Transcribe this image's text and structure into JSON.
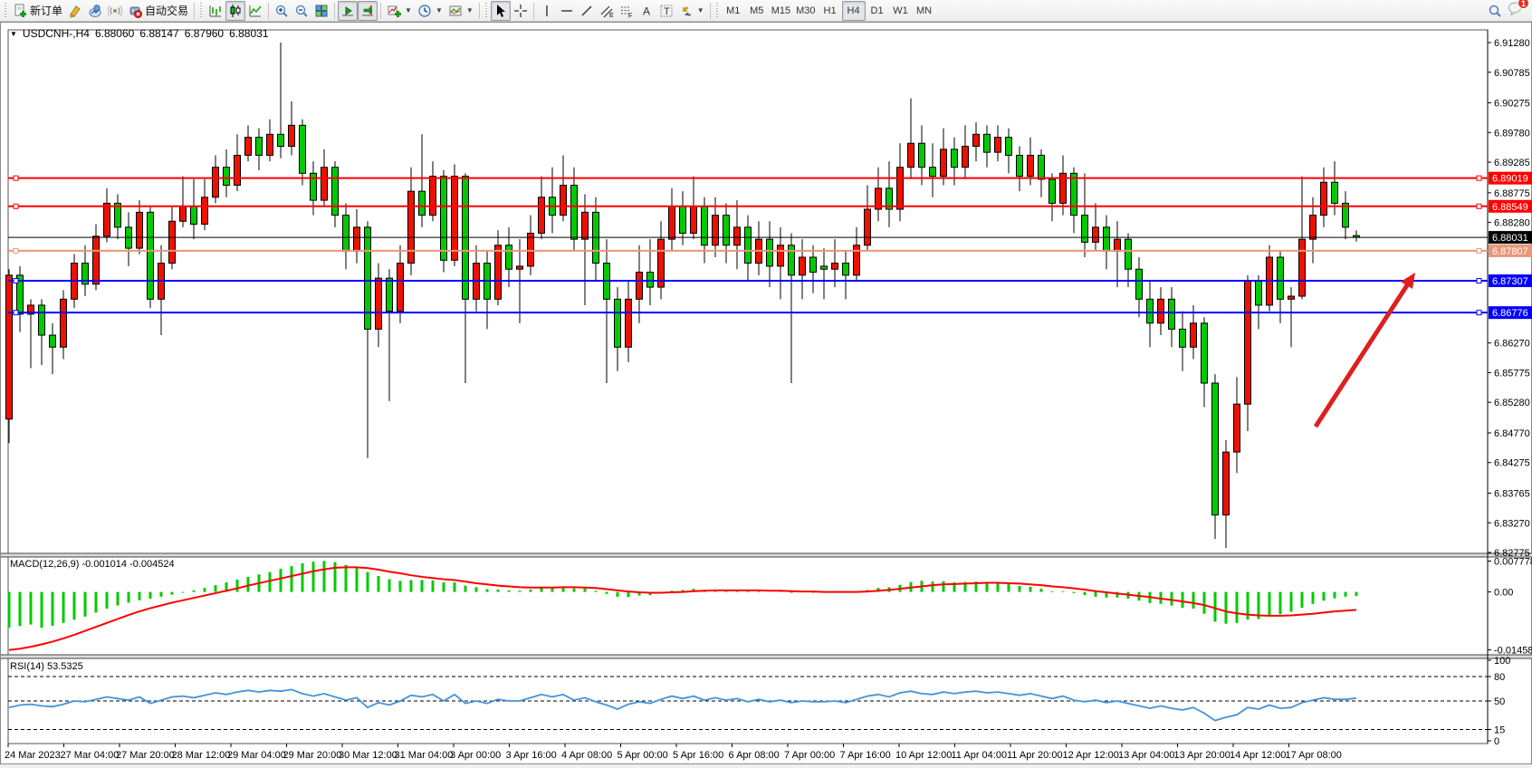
{
  "toolbar": {
    "new_order_label": "新订单",
    "auto_trading_label": "自动交易",
    "timeframes": {
      "items": [
        "M1",
        "M5",
        "M15",
        "M30",
        "H1",
        "H4",
        "D1",
        "W1",
        "MN"
      ],
      "active": "H4"
    },
    "notification_badge": "1"
  },
  "chart_header": {
    "symbol_title": "USDCNH-,H4",
    "open": "6.88060",
    "high": "6.88147",
    "low": "6.87960",
    "close": "6.88031"
  },
  "price_axis": {
    "ticks": [
      "6.91280",
      "6.90785",
      "6.90275",
      "6.89780",
      "6.89285",
      "6.88775",
      "6.88280",
      "6.86270",
      "6.85775",
      "6.85280",
      "6.84770",
      "6.84275",
      "6.83765",
      "6.83270",
      "6.82775"
    ]
  },
  "time_axis": {
    "labels": [
      "24 Mar 2023",
      "27 Mar 04:00",
      "27 Mar 20:00",
      "28 Mar 12:00",
      "29 Mar 04:00",
      "29 Mar 20:00",
      "30 Mar 12:00",
      "31 Mar 04:00",
      "3 Apr 00:00",
      "3 Apr 16:00",
      "4 Apr 08:00",
      "5 Apr 00:00",
      "5 Apr 16:00",
      "6 Apr 08:00",
      "7 Apr 00:00",
      "7 Apr 16:00",
      "10 Apr 12:00",
      "11 Apr 04:00",
      "11 Apr 20:00",
      "12 Apr 12:00",
      "13 Apr 04:00",
      "13 Apr 20:00",
      "14 Apr 12:00",
      "17 Apr 08:00"
    ]
  },
  "levels": [
    {
      "name": "resistance-line-1",
      "price": "6.89019",
      "color": "#FF0000",
      "width": 2,
      "handles": true
    },
    {
      "name": "resistance-line-2",
      "price": "6.88549",
      "color": "#FF0000",
      "width": 2,
      "handles": true
    },
    {
      "name": "current-price-line",
      "price": "6.88031",
      "color": "#000000",
      "width": 1,
      "handles": false
    },
    {
      "name": "support-line-salmon",
      "price": "6.87807",
      "color": "#E9967A",
      "width": 2,
      "handles": true
    },
    {
      "name": "support-line-blue-1",
      "price": "6.87307",
      "color": "#0000FF",
      "width": 2,
      "handles": true
    },
    {
      "name": "support-line-blue-2",
      "price": "6.86776",
      "color": "#0000FF",
      "width": 2,
      "handles": true
    }
  ],
  "annotation": {
    "type": "arrow-up-right",
    "color": "#DD1F1F"
  },
  "indicators": {
    "macd": {
      "name_label": "MACD(12,26,9)",
      "value_main": "-0.001014",
      "value_signal": "-0.004524",
      "axis_ticks": [
        "0.007778",
        "0.00",
        "-0.014587"
      ]
    },
    "rsi": {
      "name_label": "RSI(14)",
      "value": "53.5325",
      "axis_ticks": [
        "100",
        "80",
        "50",
        "15",
        "0"
      ],
      "guide_levels": [
        80,
        50,
        15
      ]
    }
  },
  "colors": {
    "bull": "#EE1100",
    "bear": "#00CB00",
    "wick": "#000000",
    "macd_histogram": "#00CB00",
    "macd_signal": "#FF0000",
    "rsi_line": "#4393DC"
  },
  "chart_data": {
    "type": "candlestick",
    "symbol": "USDCNH",
    "timeframe": "H4",
    "note": "red body = bullish, green body = bearish (CN convention)",
    "candles": [
      [
        6.85,
        6.875,
        6.846,
        6.874
      ],
      [
        6.874,
        6.8755,
        6.8645,
        6.8675
      ],
      [
        6.8675,
        6.87,
        6.8585,
        6.869
      ],
      [
        6.869,
        6.87,
        6.859,
        6.864
      ],
      [
        6.864,
        6.866,
        6.8575,
        6.862
      ],
      [
        6.862,
        6.8715,
        6.86,
        6.87
      ],
      [
        6.87,
        6.8775,
        6.8685,
        6.876
      ],
      [
        6.876,
        6.879,
        6.8705,
        6.8725
      ],
      [
        6.8725,
        6.8825,
        6.8715,
        6.8805
      ],
      [
        6.8805,
        6.8885,
        6.8795,
        6.886
      ],
      [
        6.886,
        6.8875,
        6.88,
        6.882
      ],
      [
        6.882,
        6.8845,
        6.8755,
        6.8785
      ],
      [
        6.8785,
        6.8865,
        6.8775,
        6.8845
      ],
      [
        6.8845,
        6.8855,
        6.8685,
        6.87
      ],
      [
        6.87,
        6.879,
        6.864,
        6.876
      ],
      [
        6.876,
        6.8855,
        6.875,
        6.883
      ],
      [
        6.883,
        6.8905,
        6.882,
        6.8855
      ],
      [
        6.8855,
        6.89,
        6.88,
        6.8825
      ],
      [
        6.8825,
        6.89,
        6.8815,
        6.887
      ],
      [
        6.887,
        6.894,
        6.886,
        6.892
      ],
      [
        6.892,
        6.895,
        6.887,
        6.889
      ],
      [
        6.889,
        6.8975,
        6.888,
        6.894
      ],
      [
        6.894,
        6.899,
        6.893,
        6.897
      ],
      [
        6.897,
        6.8985,
        6.8915,
        6.894
      ],
      [
        6.894,
        6.9,
        6.893,
        6.8975
      ],
      [
        6.8975,
        6.9128,
        6.8935,
        6.8955
      ],
      [
        6.8955,
        6.903,
        6.894,
        6.899
      ],
      [
        6.899,
        6.9,
        6.889,
        6.891
      ],
      [
        6.891,
        6.893,
        6.884,
        6.8865
      ],
      [
        6.8865,
        6.895,
        6.8855,
        6.892
      ],
      [
        6.892,
        6.893,
        6.882,
        6.884
      ],
      [
        6.884,
        6.886,
        6.875,
        6.878
      ],
      [
        6.878,
        6.885,
        6.876,
        6.882
      ],
      [
        6.882,
        6.883,
        6.8435,
        6.865
      ],
      [
        6.865,
        6.876,
        6.862,
        6.8735
      ],
      [
        6.8735,
        6.875,
        6.853,
        6.868
      ],
      [
        6.868,
        6.879,
        6.866,
        6.876
      ],
      [
        6.876,
        6.892,
        6.874,
        6.888
      ],
      [
        6.888,
        6.8975,
        6.882,
        6.884
      ],
      [
        6.884,
        6.893,
        6.883,
        6.8905
      ],
      [
        6.8905,
        6.8915,
        6.8745,
        6.8765
      ],
      [
        6.8765,
        6.8925,
        6.8755,
        6.8905
      ],
      [
        6.8905,
        6.891,
        6.856,
        6.87
      ],
      [
        6.87,
        6.879,
        6.868,
        6.876
      ],
      [
        6.876,
        6.878,
        6.865,
        6.87
      ],
      [
        6.87,
        6.8815,
        6.869,
        6.879
      ],
      [
        6.879,
        6.882,
        6.872,
        6.875
      ],
      [
        6.875,
        6.88,
        6.866,
        6.8755
      ],
      [
        6.8755,
        6.884,
        6.874,
        6.881
      ],
      [
        6.881,
        6.8905,
        6.88,
        6.887
      ],
      [
        6.887,
        6.892,
        6.881,
        6.884
      ],
      [
        6.884,
        6.894,
        6.883,
        6.889
      ],
      [
        6.889,
        6.892,
        6.878,
        6.88
      ],
      [
        6.88,
        6.8875,
        6.869,
        6.8845
      ],
      [
        6.8845,
        6.887,
        6.873,
        6.876
      ],
      [
        6.876,
        6.88,
        6.856,
        6.87
      ],
      [
        6.87,
        6.872,
        6.858,
        6.862
      ],
      [
        6.862,
        6.873,
        6.8595,
        6.87
      ],
      [
        6.87,
        6.879,
        6.866,
        6.8745
      ],
      [
        6.8745,
        6.88,
        6.869,
        6.872
      ],
      [
        6.872,
        6.883,
        6.87,
        6.88
      ],
      [
        6.88,
        6.8885,
        6.878,
        6.8855
      ],
      [
        6.8855,
        6.888,
        6.879,
        6.881
      ],
      [
        6.881,
        6.8905,
        6.88,
        6.8855
      ],
      [
        6.8855,
        6.887,
        6.876,
        6.879
      ],
      [
        6.879,
        6.887,
        6.877,
        6.884
      ],
      [
        6.884,
        6.886,
        6.876,
        6.879
      ],
      [
        6.879,
        6.8865,
        6.875,
        6.882
      ],
      [
        6.882,
        6.884,
        6.873,
        6.876
      ],
      [
        6.876,
        6.883,
        6.874,
        6.88
      ],
      [
        6.88,
        6.883,
        6.872,
        6.8755
      ],
      [
        6.8755,
        6.882,
        6.87,
        6.879
      ],
      [
        6.879,
        6.881,
        6.856,
        6.874
      ],
      [
        6.874,
        6.88,
        6.87,
        6.877
      ],
      [
        6.877,
        6.879,
        6.871,
        6.8745
      ],
      [
        6.8755,
        6.8785,
        6.87,
        6.875
      ],
      [
        6.875,
        6.88,
        6.872,
        6.876
      ],
      [
        6.876,
        6.878,
        6.87,
        6.874
      ],
      [
        6.874,
        6.882,
        6.873,
        6.879
      ],
      [
        6.879,
        6.889,
        6.878,
        6.885
      ],
      [
        6.885,
        6.892,
        6.883,
        6.8885
      ],
      [
        6.8885,
        6.893,
        6.882,
        6.885
      ],
      [
        6.885,
        6.896,
        6.883,
        6.892
      ],
      [
        6.892,
        6.9035,
        6.89,
        6.896
      ],
      [
        6.896,
        6.899,
        6.889,
        6.892
      ],
      [
        6.892,
        6.896,
        6.887,
        6.8905
      ],
      [
        6.8905,
        6.8985,
        6.889,
        6.895
      ],
      [
        6.895,
        6.897,
        6.889,
        6.892
      ],
      [
        6.892,
        6.899,
        6.89,
        6.8955
      ],
      [
        6.8955,
        6.8995,
        6.893,
        6.8975
      ],
      [
        6.8975,
        6.899,
        6.892,
        6.8945
      ],
      [
        6.8945,
        6.899,
        6.893,
        6.897
      ],
      [
        6.897,
        6.8985,
        6.891,
        6.894
      ],
      [
        6.894,
        6.8955,
        6.888,
        6.8905
      ],
      [
        6.8905,
        6.897,
        6.889,
        6.894
      ],
      [
        6.894,
        6.895,
        6.887,
        6.89
      ],
      [
        6.89,
        6.891,
        6.883,
        6.886
      ],
      [
        6.886,
        6.894,
        6.884,
        6.891
      ],
      [
        6.891,
        6.892,
        6.881,
        6.884
      ],
      [
        6.884,
        6.891,
        6.877,
        6.8795
      ],
      [
        6.8795,
        6.886,
        6.878,
        6.882
      ],
      [
        6.882,
        6.884,
        6.875,
        6.878
      ],
      [
        6.878,
        6.883,
        6.872,
        6.88
      ],
      [
        6.88,
        6.881,
        6.872,
        6.875
      ],
      [
        6.875,
        6.877,
        6.867,
        6.87
      ],
      [
        6.87,
        6.873,
        6.862,
        6.866
      ],
      [
        6.866,
        6.872,
        6.864,
        6.87
      ],
      [
        6.87,
        6.872,
        6.862,
        6.865
      ],
      [
        6.865,
        6.868,
        6.858,
        6.862
      ],
      [
        6.862,
        6.869,
        6.86,
        6.866
      ],
      [
        6.866,
        6.867,
        6.852,
        6.856
      ],
      [
        6.856,
        6.8575,
        6.83,
        6.834
      ],
      [
        6.834,
        6.8465,
        6.8285,
        6.8445
      ],
      [
        6.8445,
        6.857,
        6.841,
        6.8525
      ],
      [
        6.8525,
        6.874,
        6.848,
        6.873
      ],
      [
        6.873,
        6.874,
        6.865,
        6.869
      ],
      [
        6.869,
        6.879,
        6.868,
        6.877
      ],
      [
        6.877,
        6.878,
        6.866,
        6.87
      ],
      [
        6.87,
        6.872,
        6.862,
        6.8705
      ],
      [
        6.8705,
        6.8905,
        6.87,
        6.88
      ],
      [
        6.88,
        6.887,
        6.876,
        6.884
      ],
      [
        6.884,
        6.892,
        6.882,
        6.8895
      ],
      [
        6.8895,
        6.893,
        6.884,
        6.886
      ],
      [
        6.886,
        6.888,
        6.88,
        6.882
      ],
      [
        6.8806,
        6.88147,
        6.8796,
        6.88031
      ]
    ],
    "macd_histogram": [
      -0.009,
      -0.0086,
      -0.0082,
      -0.009,
      -0.0085,
      -0.0078,
      -0.007,
      -0.0062,
      -0.0052,
      -0.0042,
      -0.0034,
      -0.0027,
      -0.0021,
      -0.0017,
      -0.0012,
      -0.0007,
      -0.0002,
      0.0004,
      0.001,
      0.0017,
      0.0024,
      0.0031,
      0.0038,
      0.0044,
      0.005,
      0.0058,
      0.0065,
      0.0072,
      0.0076,
      0.0078,
      0.0075,
      0.0068,
      0.006,
      0.005,
      0.004,
      0.0032,
      0.0028,
      0.003,
      0.003,
      0.0029,
      0.0024,
      0.0024,
      0.0016,
      0.0012,
      0.0007,
      0.0006,
      0.0004,
      0.0003,
      0.0006,
      0.001,
      0.0011,
      0.0014,
      0.0009,
      0.0009,
      0.0003,
      -0.0005,
      -0.0012,
      -0.0013,
      -0.0009,
      -0.0008,
      -0.0003,
      0.0003,
      0.0005,
      0.0008,
      0.0005,
      0.0006,
      0.0004,
      0.0005,
      0.0002,
      0.0002,
      0.0,
      0.0001,
      -0.0002,
      -0.0001,
      -0.0002,
      -0.0002,
      -0.0001,
      -0.0002,
      0.0001,
      0.0005,
      0.001,
      0.0012,
      0.0018,
      0.0025,
      0.0028,
      0.0026,
      0.0027,
      0.0024,
      0.0025,
      0.0026,
      0.0024,
      0.0023,
      0.002,
      0.0015,
      0.0013,
      0.0008,
      0.0002,
      0.0002,
      -0.0003,
      -0.0008,
      -0.0012,
      -0.0014,
      -0.0014,
      -0.0017,
      -0.0022,
      -0.0028,
      -0.003,
      -0.0034,
      -0.004,
      -0.0042,
      -0.0055,
      -0.0075,
      -0.008,
      -0.0078,
      -0.007,
      -0.0068,
      -0.006,
      -0.0056,
      -0.005,
      -0.004,
      -0.003,
      -0.0022,
      -0.0016,
      -0.0012,
      -0.001
    ],
    "macd_signal": [
      -0.0146,
      -0.0143,
      -0.0138,
      -0.0132,
      -0.0125,
      -0.0117,
      -0.0108,
      -0.0098,
      -0.0088,
      -0.0078,
      -0.0068,
      -0.0058,
      -0.0049,
      -0.0041,
      -0.0034,
      -0.0027,
      -0.0021,
      -0.0015,
      -0.0009,
      -0.0003,
      0.0003,
      0.0009,
      0.0016,
      0.0022,
      0.0028,
      0.0034,
      0.004,
      0.0046,
      0.0052,
      0.0057,
      0.0061,
      0.0062,
      0.0062,
      0.006,
      0.0056,
      0.0051,
      0.0047,
      0.0042,
      0.0038,
      0.0035,
      0.0032,
      0.003,
      0.0026,
      0.0022,
      0.0019,
      0.0016,
      0.0014,
      0.0012,
      0.0011,
      0.0011,
      0.0011,
      0.0012,
      0.0012,
      0.0011,
      0.001,
      0.0007,
      0.0004,
      0.0001,
      -0.0001,
      -0.0002,
      -0.0002,
      -0.0001,
      0.0,
      0.0002,
      0.0003,
      0.0004,
      0.0004,
      0.0004,
      0.0004,
      0.0004,
      0.0003,
      0.0003,
      0.0002,
      0.0001,
      0.0001,
      0.0,
      0.0,
      0.0,
      0.0,
      0.0001,
      0.0003,
      0.0005,
      0.0008,
      0.0011,
      0.0014,
      0.0017,
      0.0019,
      0.002,
      0.0021,
      0.0022,
      0.0023,
      0.0023,
      0.0022,
      0.0021,
      0.0019,
      0.0017,
      0.0014,
      0.0012,
      0.0009,
      0.0006,
      0.0002,
      -0.0001,
      -0.0004,
      -0.0007,
      -0.001,
      -0.0013,
      -0.0017,
      -0.002,
      -0.0024,
      -0.0028,
      -0.0033,
      -0.0041,
      -0.0049,
      -0.0054,
      -0.0057,
      -0.0059,
      -0.006,
      -0.006,
      -0.0059,
      -0.0057,
      -0.0055,
      -0.0052,
      -0.0049,
      -0.0047,
      -0.0045
    ],
    "rsi_values": [
      42,
      45,
      46,
      44,
      43,
      46,
      50,
      49,
      52,
      55,
      53,
      51,
      55,
      47,
      51,
      55,
      56,
      54,
      57,
      60,
      58,
      61,
      63,
      61,
      63,
      62,
      64,
      59,
      56,
      59,
      55,
      51,
      54,
      42,
      48,
      45,
      50,
      57,
      55,
      58,
      50,
      58,
      47,
      50,
      47,
      52,
      50,
      50,
      54,
      58,
      55,
      58,
      51,
      54,
      49,
      45,
      40,
      46,
      49,
      47,
      52,
      56,
      53,
      56,
      51,
      54,
      51,
      53,
      49,
      52,
      49,
      51,
      48,
      50,
      49,
      49,
      50,
      48,
      52,
      56,
      58,
      55,
      60,
      62,
      59,
      58,
      61,
      59,
      61,
      62,
      60,
      61,
      59,
      57,
      59,
      56,
      53,
      56,
      51,
      49,
      51,
      48,
      50,
      47,
      44,
      41,
      44,
      41,
      39,
      42,
      35,
      26,
      30,
      33,
      42,
      40,
      45,
      41,
      42,
      48,
      51,
      54,
      52,
      52,
      53.5
    ]
  }
}
